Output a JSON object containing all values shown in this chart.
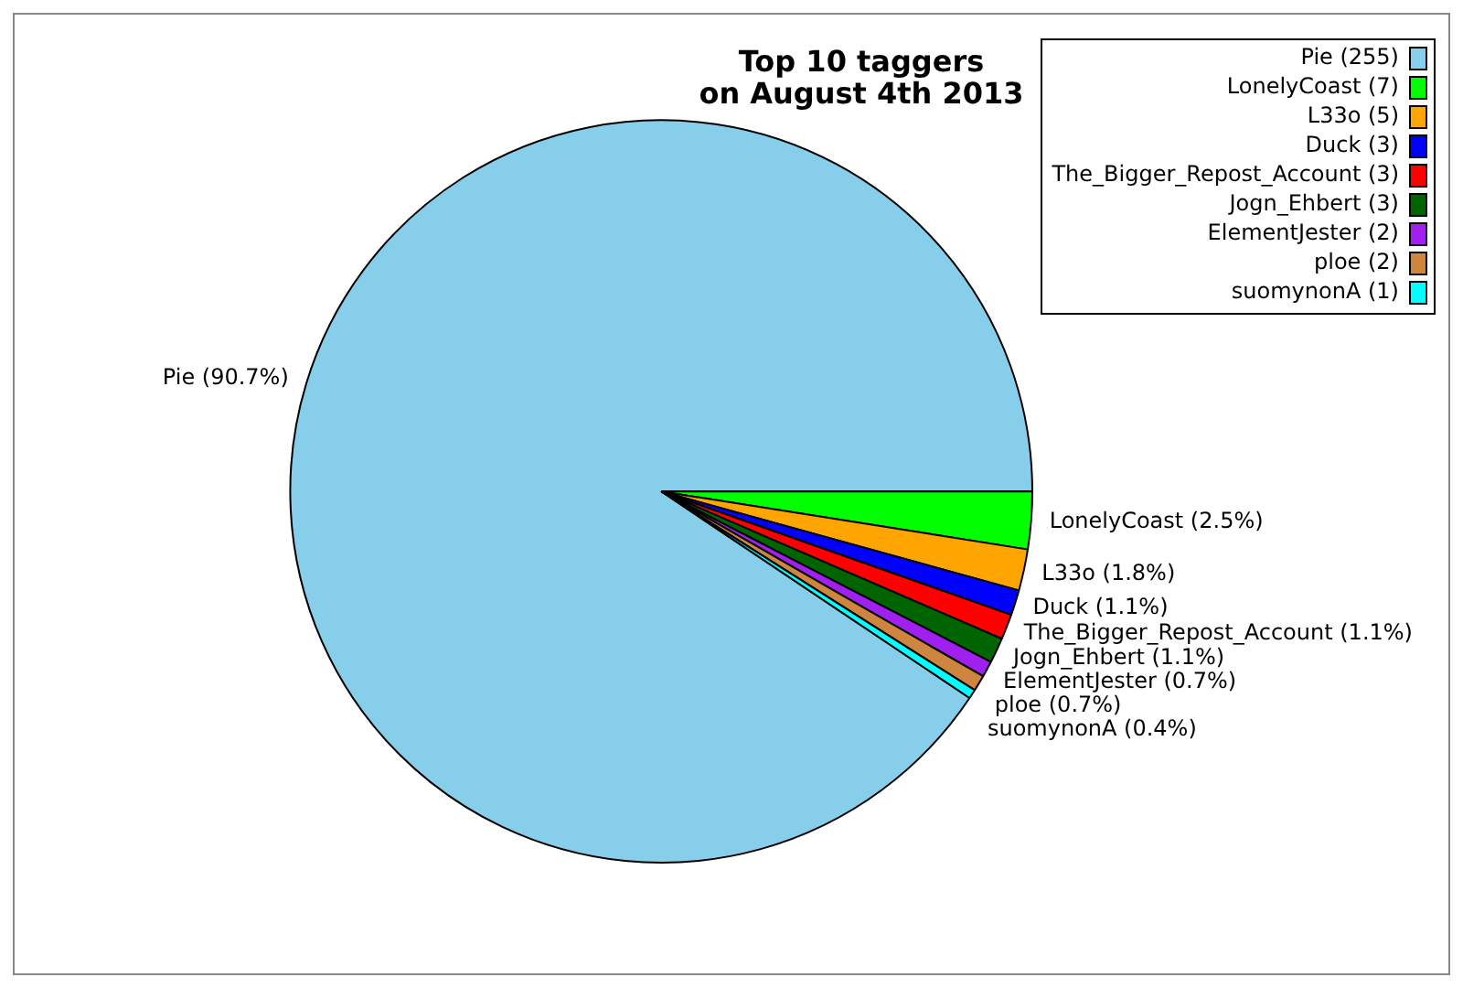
{
  "chart_data": {
    "type": "pie",
    "title": "Top 10 taggers\non August 4th 2013",
    "categories": [
      "Pie (255)",
      "LonelyCoast (7)",
      "L33o (5)",
      "Duck (3)",
      "The_Bigger_Repost_Account (3)",
      "Jogn_Ehbert (3)",
      "ElementJester (2)",
      "ploe (2)",
      "suomynonA (1)"
    ],
    "values": [
      90.7,
      2.5,
      1.8,
      1.1,
      1.1,
      1.1,
      0.7,
      0.7,
      0.4
    ],
    "value_labels": [
      "Pie (90.7%)",
      "LonelyCoast (2.5%)",
      "L33o (1.8%)",
      "Duck (1.1%)",
      "The_Bigger_Repost_Account (1.1%)",
      "Jogn_Ehbert (1.1%)",
      "ElementJester (0.7%)",
      "ploe (0.7%)",
      "suomynonA (0.4%)"
    ],
    "colors": [
      "#87ceeb",
      "#00ff00",
      "#ffa500",
      "#0000ff",
      "#ff0000",
      "#006400",
      "#a020f0",
      "#cd853f",
      "#00ffff"
    ],
    "legend": "top right"
  }
}
